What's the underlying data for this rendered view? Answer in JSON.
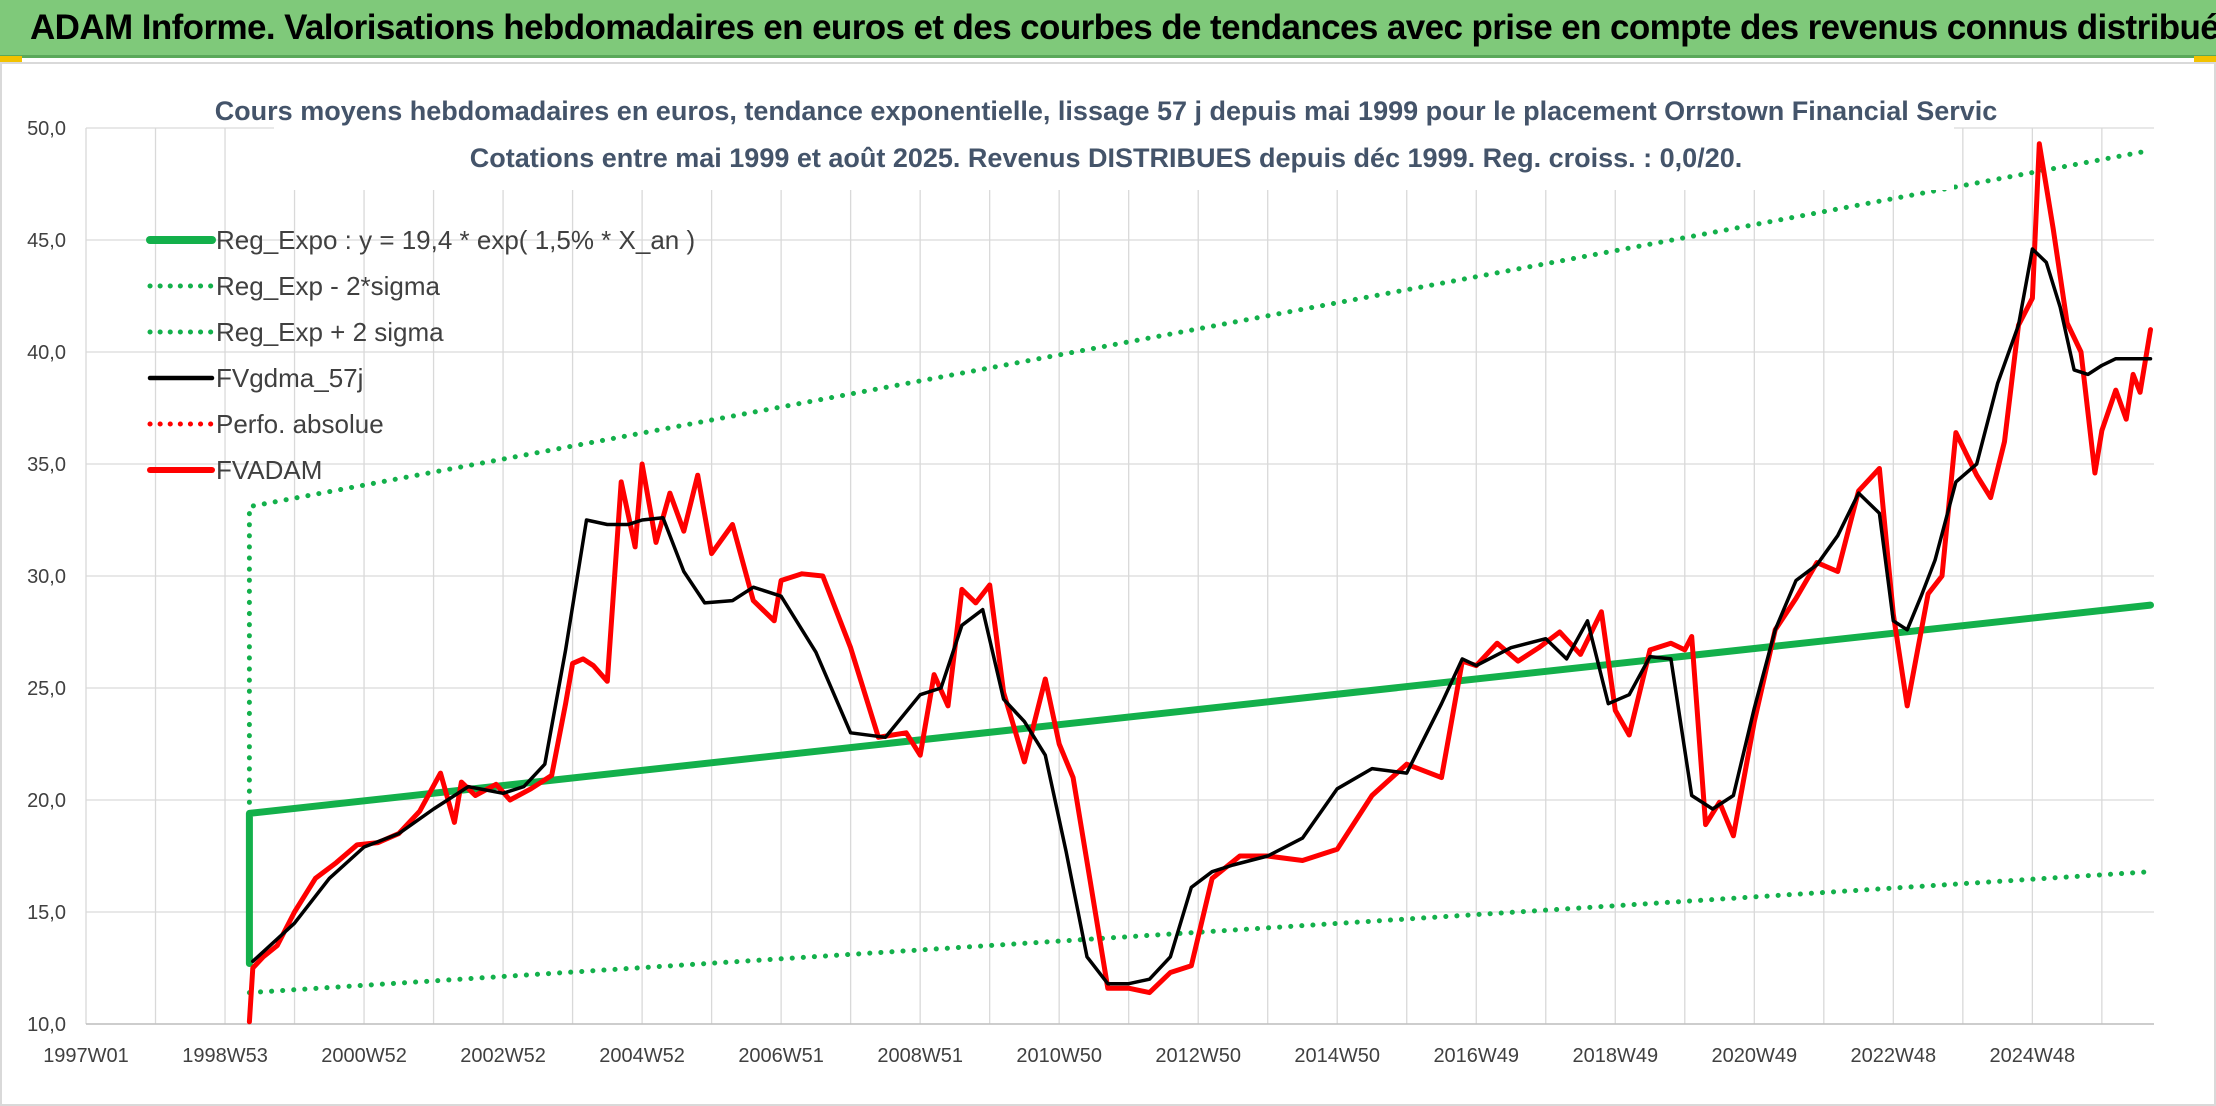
{
  "banner": {
    "title": "ADAM Informe. Valorisations hebdomadaires en euros et des courbes de tendances avec prise en compte des revenus connus distribués"
  },
  "chart_data": {
    "type": "line",
    "title": "Cours moyens hebdomadaires en euros, tendance exponentielle, lissage 57 j depuis mai 1999 pour le placement Orrstown Financial Servic",
    "subtitle": "Cotations entre mai 1999 et août 2025. Revenus DISTRIBUES depuis déc 1999. Reg. croiss. : 0,0/20.",
    "xlabel": "",
    "ylabel": "",
    "ylim": [
      10,
      50
    ],
    "yticks": [
      "10,0",
      "15,0",
      "20,0",
      "25,0",
      "30,0",
      "35,0",
      "40,0",
      "45,0",
      "50,0"
    ],
    "xticks": [
      {
        "label": "1997W01",
        "year": 1997.0
      },
      {
        "label": "1998W53",
        "year": 1999.0
      },
      {
        "label": "2000W52",
        "year": 2001.0
      },
      {
        "label": "2002W52",
        "year": 2003.0
      },
      {
        "label": "2004W52",
        "year": 2005.0
      },
      {
        "label": "2006W51",
        "year": 2007.0
      },
      {
        "label": "2008W51",
        "year": 2009.0
      },
      {
        "label": "2010W50",
        "year": 2011.0
      },
      {
        "label": "2012W50",
        "year": 2013.0
      },
      {
        "label": "2014W50",
        "year": 2015.0
      },
      {
        "label": "2016W49",
        "year": 2017.0
      },
      {
        "label": "2018W49",
        "year": 2019.0
      },
      {
        "label": "2020W49",
        "year": 2021.0
      },
      {
        "label": "2022W48",
        "year": 2023.0
      },
      {
        "label": "2024W48",
        "year": 2025.0
      }
    ],
    "grid": true,
    "legend_position": "top-left",
    "series": [
      {
        "name": "Reg_Expo : y = 19,4 * exp( 1,5% *  X_an )",
        "color": "#13b04b",
        "style": "solid",
        "x": [
          1999.35,
          1999.35,
          2026.7
        ],
        "y": [
          12.7,
          19.4,
          28.7
        ]
      },
      {
        "name": "Reg_Exp - 2*sigma",
        "color": "#13b04b",
        "style": "dotted",
        "x": [
          1999.35,
          2026.7
        ],
        "y": [
          11.4,
          16.8
        ]
      },
      {
        "name": "Reg_Exp + 2 sigma",
        "color": "#13b04b",
        "style": "dotted",
        "x": [
          1999.35,
          1999.35,
          2026.7
        ],
        "y": [
          19.4,
          33.1,
          49.0
        ]
      },
      {
        "name": "FVgdma_57j",
        "color": "#000000",
        "style": "solid",
        "x": [
          1999.4,
          2000.0,
          2000.5,
          2001.0,
          2001.5,
          2002.0,
          2002.5,
          2003.0,
          2003.3,
          2003.6,
          2003.9,
          2004.2,
          2004.5,
          2004.8,
          2005.0,
          2005.3,
          2005.6,
          2005.9,
          2006.3,
          2006.6,
          2007.0,
          2007.5,
          2008.0,
          2008.5,
          2009.0,
          2009.3,
          2009.6,
          2009.9,
          2010.2,
          2010.5,
          2010.8,
          2011.1,
          2011.4,
          2011.7,
          2012.0,
          2012.3,
          2012.6,
          2012.9,
          2013.2,
          2013.5,
          2014.0,
          2014.5,
          2015.0,
          2015.5,
          2016.0,
          2016.5,
          2016.8,
          2017.0,
          2017.5,
          2018.0,
          2018.3,
          2018.6,
          2018.9,
          2019.2,
          2019.5,
          2019.8,
          2020.1,
          2020.4,
          2020.7,
          2021.0,
          2021.3,
          2021.6,
          2021.9,
          2022.2,
          2022.5,
          2022.8,
          2023.0,
          2023.2,
          2023.4,
          2023.6,
          2023.9,
          2024.2,
          2024.5,
          2024.8,
          2025.0,
          2025.2,
          2025.4,
          2025.6,
          2025.8,
          2026.0,
          2026.2,
          2026.7
        ],
        "y": [
          12.8,
          14.5,
          16.5,
          17.9,
          18.5,
          19.6,
          20.6,
          20.3,
          20.6,
          21.6,
          26.7,
          32.5,
          32.3,
          32.3,
          32.5,
          32.6,
          30.2,
          28.8,
          28.9,
          29.5,
          29.1,
          26.6,
          23.0,
          22.8,
          24.7,
          25.0,
          27.8,
          28.5,
          24.5,
          23.5,
          22.0,
          17.7,
          13.0,
          11.8,
          11.8,
          12.0,
          13.0,
          16.1,
          16.8,
          17.1,
          17.5,
          18.3,
          20.5,
          21.4,
          21.2,
          24.3,
          26.3,
          26.0,
          26.8,
          27.2,
          26.3,
          28.0,
          24.3,
          24.7,
          26.4,
          26.3,
          20.2,
          19.6,
          20.2,
          24.1,
          27.6,
          29.8,
          30.5,
          31.8,
          33.7,
          32.8,
          28.0,
          27.6,
          29.1,
          30.7,
          34.2,
          35.0,
          38.6,
          41.2,
          44.6,
          44.0,
          42.0,
          39.2,
          39.0,
          39.4,
          39.7,
          39.7
        ]
      },
      {
        "name": "Perfo. absolue",
        "color": "#ff0000",
        "style": "dotted",
        "x": [],
        "y": []
      },
      {
        "name": "FVADAM",
        "color": "#ff0000",
        "style": "solid",
        "x": [
          1999.35,
          1999.4,
          1999.55,
          1999.75,
          2000.0,
          2000.3,
          2000.6,
          2000.9,
          2001.2,
          2001.5,
          2001.8,
          2002.1,
          2002.3,
          2002.4,
          2002.6,
          2002.9,
          2003.1,
          2003.4,
          2003.7,
          2003.9,
          2004.0,
          2004.15,
          2004.3,
          2004.5,
          2004.7,
          2004.9,
          2005.0,
          2005.2,
          2005.4,
          2005.6,
          2005.8,
          2006.0,
          2006.3,
          2006.6,
          2006.9,
          2007.0,
          2007.3,
          2007.6,
          2008.0,
          2008.4,
          2008.8,
          2009.0,
          2009.2,
          2009.4,
          2009.6,
          2009.8,
          2010.0,
          2010.2,
          2010.5,
          2010.8,
          2011.0,
          2011.2,
          2011.45,
          2011.7,
          2012.0,
          2012.3,
          2012.6,
          2012.9,
          2013.2,
          2013.6,
          2014.0,
          2014.5,
          2015.0,
          2015.5,
          2016.0,
          2016.5,
          2016.8,
          2017.0,
          2017.3,
          2017.6,
          2017.9,
          2018.2,
          2018.5,
          2018.8,
          2019.0,
          2019.2,
          2019.5,
          2019.8,
          2020.0,
          2020.1,
          2020.3,
          2020.5,
          2020.7,
          2021.0,
          2021.3,
          2021.6,
          2021.9,
          2022.2,
          2022.5,
          2022.8,
          2022.9,
          2023.0,
          2023.2,
          2023.5,
          2023.7,
          2023.9,
          2024.2,
          2024.4,
          2024.6,
          2024.8,
          2025.0,
          2025.1,
          2025.3,
          2025.5,
          2025.7,
          2025.9,
          2026.0,
          2026.2,
          2026.35,
          2026.45,
          2026.55,
          2026.7
        ],
        "y": [
          10.1,
          12.5,
          13.0,
          13.5,
          15.0,
          16.5,
          17.2,
          18.0,
          18.1,
          18.5,
          19.5,
          21.2,
          19.0,
          20.8,
          20.2,
          20.7,
          20.0,
          20.5,
          21.1,
          24.3,
          26.1,
          26.3,
          26.0,
          25.3,
          34.2,
          31.3,
          35.0,
          31.5,
          33.7,
          32.0,
          34.5,
          31.0,
          32.3,
          28.9,
          28.0,
          29.8,
          30.1,
          30.0,
          26.8,
          22.8,
          23.0,
          22.0,
          25.6,
          24.2,
          29.4,
          28.8,
          29.6,
          24.8,
          21.7,
          25.4,
          22.5,
          21.0,
          16.3,
          11.6,
          11.6,
          11.4,
          12.3,
          12.6,
          16.5,
          17.5,
          17.5,
          17.3,
          17.8,
          20.2,
          21.6,
          21.0,
          26.2,
          26.0,
          27.0,
          26.2,
          26.8,
          27.5,
          26.5,
          28.4,
          24.0,
          22.9,
          26.7,
          27.0,
          26.7,
          27.3,
          18.9,
          19.9,
          18.4,
          23.5,
          27.6,
          29.0,
          30.6,
          30.2,
          33.8,
          34.8,
          31.5,
          28.3,
          24.2,
          29.2,
          30.0,
          36.4,
          34.5,
          33.5,
          36.0,
          41.2,
          42.4,
          49.3,
          45.5,
          41.3,
          40.0,
          34.6,
          36.5,
          38.3,
          37.0,
          39.0,
          38.2,
          41.0
        ]
      }
    ]
  }
}
